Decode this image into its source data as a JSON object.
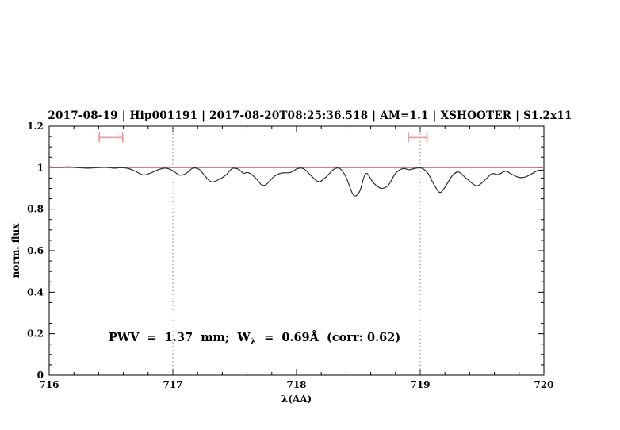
{
  "figure": {
    "title": "2017-08-19 | Hip001191 | 2017-08-20T08:25:36.518 | AM=1.1 | XSHOOTER | S1.2x11",
    "title_color": "#1515d6",
    "annotation": {
      "prefix": "PWV  =  1.37  mm;  W",
      "sub": "λ",
      "suffix": "  =  0.69Å  (corr: 0.62)",
      "color": "#1515d6"
    }
  },
  "chart_data": {
    "type": "line",
    "title": "2017-08-19 | Hip001191 | 2017-08-20T08:25:36.518 | AM=1.1 | XSHOOTER | S1.2x11",
    "xlabel": "λ(AA)",
    "ylabel": "norm. flux",
    "xlim": [
      716,
      720
    ],
    "ylim": [
      0,
      1.2
    ],
    "grid": "off",
    "legend": "none",
    "x_major_ticks": [
      716,
      717,
      718,
      719,
      720
    ],
    "x_tick_labels": [
      "716",
      "717",
      "718",
      "719",
      "720"
    ],
    "x_minor_step": 0.2,
    "y_major_ticks": [
      0,
      0.2,
      0.4,
      0.6,
      0.8,
      1,
      1.2
    ],
    "y_tick_labels": [
      "0",
      "0.2",
      "0.4",
      "0.6",
      "0.8",
      "1",
      "1.2"
    ],
    "y_minor_step": 0.05,
    "dotted_vlines": {
      "x": [
        717,
        719
      ],
      "color": "#707070"
    },
    "reference_hline": {
      "y": 1.0,
      "color": "#d96a6a"
    },
    "range_markers": {
      "color": "#f09c9c",
      "items": [
        {
          "x_center": 716.5,
          "x_halfwidth": 0.095,
          "y": 1.145
        },
        {
          "x_center": 718.98,
          "x_halfwidth": 0.075,
          "y": 1.145
        }
      ]
    },
    "series": [
      {
        "name": "telluric-spectrum",
        "color": "#2f2f2f",
        "x": [
          716.0,
          716.08,
          716.16,
          716.24,
          716.32,
          716.4,
          716.46,
          716.52,
          716.58,
          716.64,
          716.7,
          716.76,
          716.82,
          716.88,
          716.94,
          717.0,
          717.05,
          717.1,
          717.16,
          717.21,
          717.26,
          717.31,
          717.37,
          717.43,
          717.48,
          717.53,
          717.57,
          717.61,
          717.67,
          717.72,
          717.76,
          717.82,
          717.88,
          717.95,
          718.01,
          718.06,
          718.12,
          718.18,
          718.24,
          718.3,
          718.35,
          718.4,
          718.46,
          718.51,
          718.56,
          718.62,
          718.68,
          718.74,
          718.8,
          718.86,
          718.91,
          718.96,
          719.01,
          719.06,
          719.11,
          719.16,
          719.21,
          719.26,
          719.31,
          719.37,
          719.43,
          719.47,
          719.53,
          719.58,
          719.63,
          719.69,
          719.74,
          719.8,
          719.85,
          719.9,
          719.95,
          720.0
        ],
        "y": [
          1.004,
          1.002,
          1.004,
          1.0,
          0.998,
          1.001,
          1.002,
          0.998,
          1.0,
          0.996,
          0.982,
          0.965,
          0.974,
          0.99,
          0.998,
          0.986,
          0.965,
          0.97,
          0.997,
          0.993,
          0.96,
          0.932,
          0.942,
          0.965,
          0.996,
          0.993,
          0.973,
          0.976,
          0.95,
          0.916,
          0.922,
          0.958,
          0.974,
          0.977,
          0.996,
          0.994,
          0.96,
          0.932,
          0.956,
          0.992,
          0.996,
          0.955,
          0.868,
          0.885,
          0.972,
          0.928,
          0.901,
          0.914,
          0.972,
          0.996,
          0.99,
          0.997,
          0.998,
          0.975,
          0.92,
          0.88,
          0.915,
          0.962,
          0.979,
          0.95,
          0.92,
          0.914,
          0.944,
          0.971,
          0.967,
          0.983,
          0.968,
          0.953,
          0.955,
          0.97,
          0.986,
          0.988
        ]
      }
    ]
  }
}
